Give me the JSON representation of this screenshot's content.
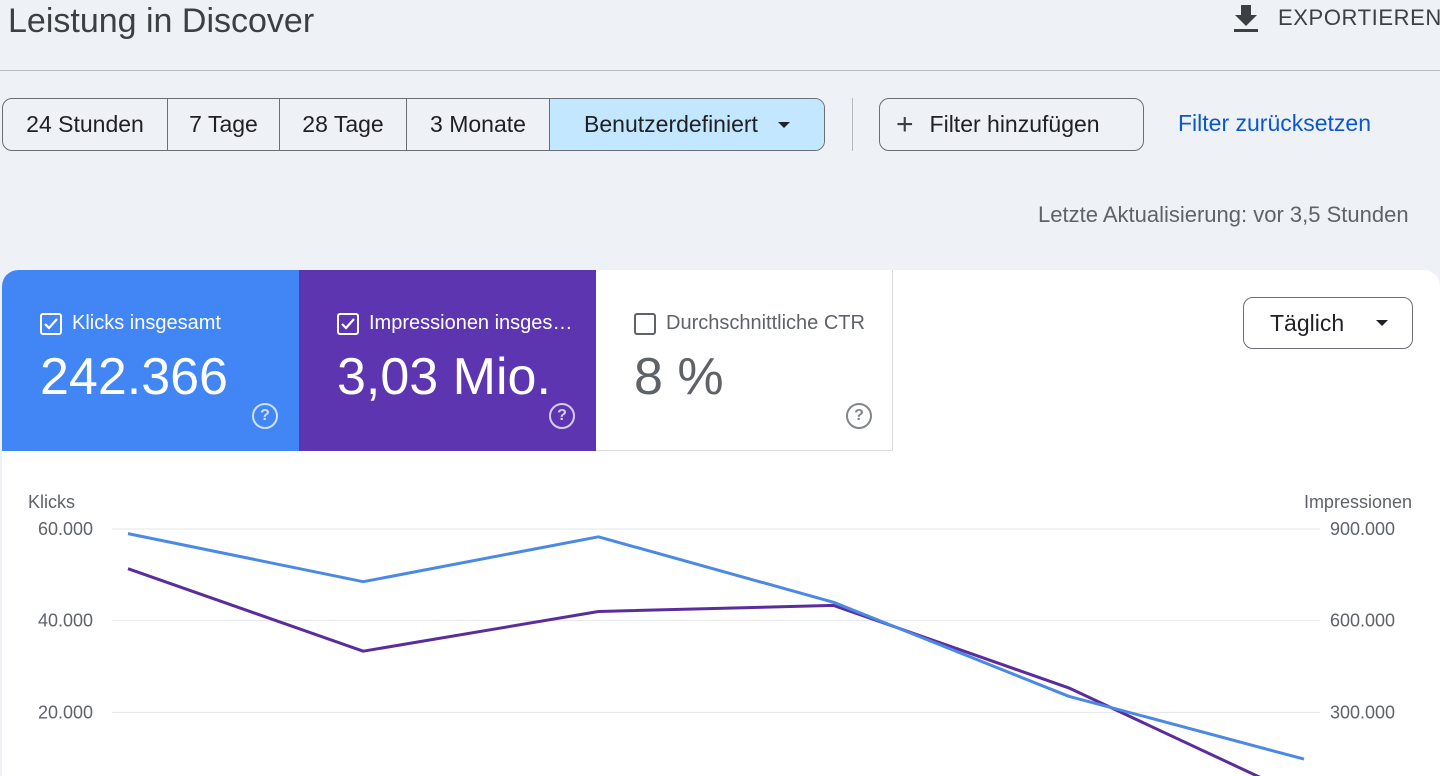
{
  "header": {
    "title": "Leistung in Discover",
    "export_label": "EXPORTIEREN"
  },
  "toolbar": {
    "ranges": [
      "24 Stunden",
      "7 Tage",
      "28 Tage",
      "3 Monate"
    ],
    "custom_label": "Benutzerdefiniert",
    "add_filter_label": "Filter hinzufügen",
    "reset_label": "Filter zurücksetzen"
  },
  "status": {
    "last_update": "Letzte Aktualisierung: vor 3,5 Stunden"
  },
  "metrics": {
    "clicks": {
      "label": "Klicks insgesamt",
      "value": "242.366",
      "checked": true,
      "color": "#4285f4"
    },
    "impressions": {
      "label": "Impressionen insgesamt",
      "value": "3,03 Mio.",
      "checked": true,
      "color": "#5e35b1"
    },
    "ctr": {
      "label": "Durchschnittliche CTR",
      "value": "8 %",
      "checked": false
    }
  },
  "granularity": {
    "selected": "Täglich"
  },
  "chart_data": {
    "type": "line",
    "y_left_label": "Klicks",
    "y_right_label": "Impressionen",
    "y_left_ticks": [
      "60.000",
      "40.000",
      "20.000"
    ],
    "y_right_ticks": [
      "900.000",
      "600.000",
      "300.000"
    ],
    "y_left_range": [
      0,
      60000
    ],
    "y_right_range": [
      0,
      900000
    ],
    "grid": true,
    "series": [
      {
        "name": "Klicks",
        "axis": "left",
        "color": "#4a8ae6",
        "values": [
          59000,
          48500,
          58300,
          44000,
          23500,
          9800
        ]
      },
      {
        "name": "Impressionen",
        "axis": "right",
        "color": "#5b2d9c",
        "values": [
          770000,
          500000,
          630000,
          650000,
          380000,
          20000
        ]
      }
    ]
  }
}
